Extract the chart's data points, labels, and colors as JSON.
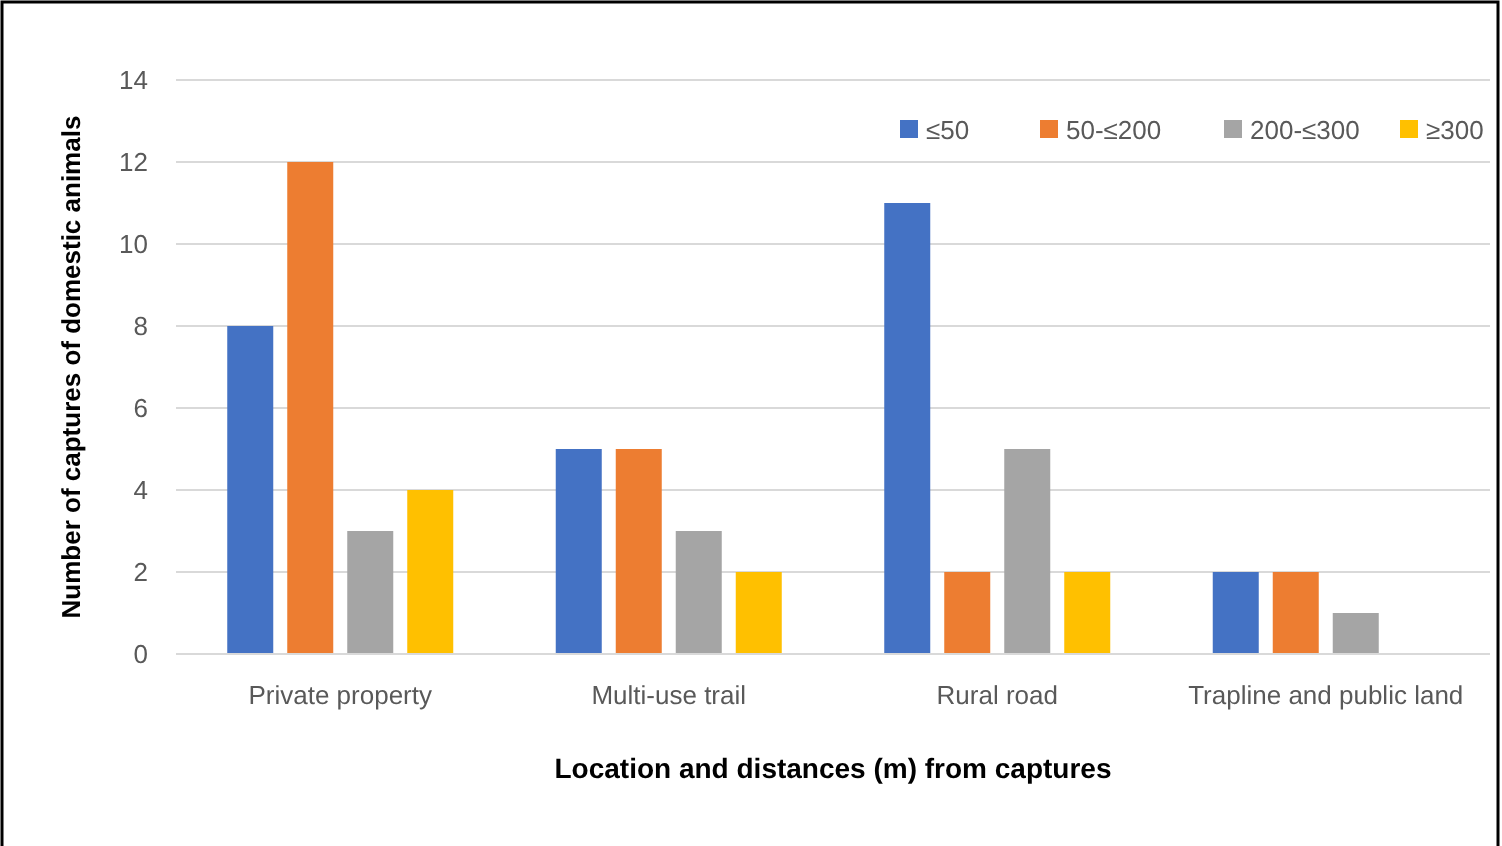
{
  "chart_data": {
    "type": "bar",
    "xlabel": "Location and distances (m) from captures",
    "ylabel": "Number of captures of domestic animals",
    "categories": [
      "Private property",
      "Multi-use trail",
      "Rural road",
      "Trapline and public land"
    ],
    "series": [
      {
        "name": "≤50",
        "color": "#4472c4",
        "values": [
          8,
          5,
          11,
          2
        ]
      },
      {
        "name": "50-≤200",
        "color": "#ed7d31",
        "values": [
          12,
          5,
          2,
          2
        ]
      },
      {
        "name": "200-≤300",
        "color": "#a5a5a5",
        "values": [
          3,
          3,
          5,
          1
        ]
      },
      {
        "name": "≥300",
        "color": "#ffc000",
        "values": [
          4,
          2,
          2,
          0
        ]
      }
    ],
    "ylim": [
      0,
      14
    ],
    "yticks": [
      0,
      2,
      4,
      6,
      8,
      10,
      12,
      14
    ],
    "grid": "y",
    "legend": "top right"
  }
}
